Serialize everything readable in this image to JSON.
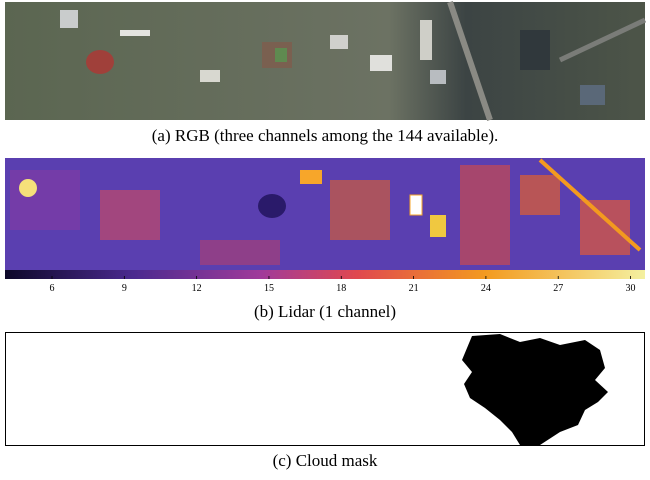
{
  "figure": {
    "panels": [
      {
        "caption": "(a) RGB (three channels among the 144 available)."
      },
      {
        "caption": "(b) Lidar (1 channel)",
        "colorbar": {
          "lim": [
            4.05,
            30.6
          ],
          "ticks": [
            6,
            9,
            12,
            15,
            18,
            21,
            24,
            27,
            30
          ]
        }
      },
      {
        "caption": "(c) Cloud mask"
      }
    ]
  }
}
